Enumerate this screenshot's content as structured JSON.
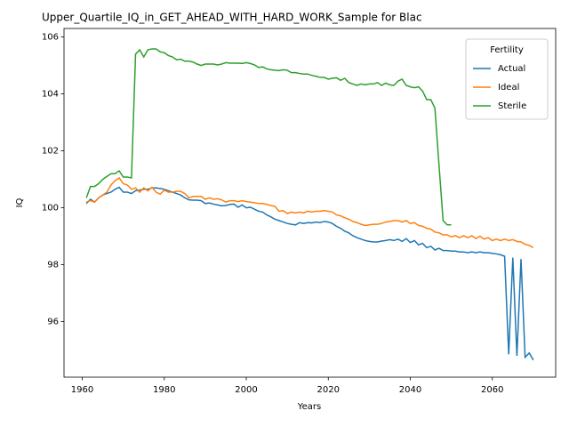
{
  "chart_data": {
    "type": "line",
    "title": "Upper_Quartile_IQ_in_GET_AHEAD_WITH_HARD_WORK_Sample for Blac",
    "xlabel": "Years",
    "ylabel": "IQ",
    "x": [
      1961,
      1962,
      1963,
      1964,
      1965,
      1966,
      1967,
      1968,
      1969,
      1970,
      1971,
      1972,
      1973,
      1974,
      1975,
      1976,
      1977,
      1978,
      1979,
      1980,
      1981,
      1982,
      1983,
      1984,
      1985,
      1986,
      1987,
      1988,
      1989,
      1990,
      1991,
      1992,
      1993,
      1994,
      1995,
      1996,
      1997,
      1998,
      1999,
      2000,
      2001,
      2002,
      2003,
      2004,
      2005,
      2006,
      2007,
      2008,
      2009,
      2010,
      2011,
      2012,
      2013,
      2014,
      2015,
      2016,
      2017,
      2018,
      2019,
      2020,
      2021,
      2022,
      2023,
      2024,
      2025,
      2026,
      2027,
      2028,
      2029,
      2030,
      2031,
      2032,
      2033,
      2034,
      2035,
      2036,
      2037,
      2038,
      2039,
      2040,
      2041,
      2042,
      2043,
      2044,
      2045,
      2046,
      2047,
      2048,
      2049,
      2050,
      2051,
      2052,
      2053,
      2054,
      2055,
      2056,
      2057,
      2058,
      2059,
      2060,
      2061,
      2062,
      2063,
      2064,
      2065,
      2066,
      2067,
      2068,
      2069,
      2070
    ],
    "series": [
      {
        "name": "Actual",
        "color": "#1f77b4",
        "values": [
          100.15,
          100.3,
          100.2,
          100.35,
          100.45,
          100.5,
          100.55,
          100.65,
          100.72,
          100.55,
          100.55,
          100.5,
          100.6,
          100.62,
          100.65,
          100.65,
          100.7,
          100.7,
          100.68,
          100.65,
          100.6,
          100.55,
          100.5,
          100.45,
          100.35,
          100.28,
          100.27,
          100.27,
          100.25,
          100.15,
          100.17,
          100.13,
          100.1,
          100.07,
          100.08,
          100.12,
          100.13,
          100.02,
          100.1,
          100.0,
          100.02,
          99.95,
          99.88,
          99.85,
          99.75,
          99.68,
          99.6,
          99.55,
          99.5,
          99.45,
          99.42,
          99.4,
          99.48,
          99.45,
          99.48,
          99.47,
          99.5,
          99.48,
          99.52,
          99.5,
          99.45,
          99.35,
          99.28,
          99.18,
          99.12,
          99.02,
          98.95,
          98.9,
          98.85,
          98.82,
          98.8,
          98.8,
          98.83,
          98.85,
          98.88,
          98.85,
          98.9,
          98.82,
          98.92,
          98.78,
          98.85,
          98.7,
          98.75,
          98.6,
          98.65,
          98.52,
          98.58,
          98.5,
          98.5,
          98.48,
          98.48,
          98.45,
          98.45,
          98.42,
          98.45,
          98.42,
          98.45,
          98.42,
          98.42,
          98.4,
          98.38,
          98.35,
          98.3,
          94.85,
          98.25,
          94.8,
          98.2,
          94.75,
          94.9,
          94.65
        ]
      },
      {
        "name": "Ideal",
        "color": "#ff7f0e",
        "values": [
          100.2,
          100.25,
          100.2,
          100.35,
          100.45,
          100.55,
          100.8,
          100.95,
          101.05,
          100.85,
          100.8,
          100.65,
          100.7,
          100.55,
          100.7,
          100.6,
          100.72,
          100.55,
          100.48,
          100.62,
          100.55,
          100.55,
          100.58,
          100.58,
          100.5,
          100.35,
          100.4,
          100.4,
          100.4,
          100.3,
          100.35,
          100.3,
          100.32,
          100.28,
          100.2,
          100.25,
          100.25,
          100.22,
          100.25,
          100.22,
          100.2,
          100.18,
          100.15,
          100.15,
          100.12,
          100.08,
          100.05,
          99.88,
          99.9,
          99.8,
          99.85,
          99.82,
          99.85,
          99.82,
          99.88,
          99.85,
          99.88,
          99.88,
          99.9,
          99.88,
          99.85,
          99.75,
          99.72,
          99.65,
          99.6,
          99.52,
          99.48,
          99.42,
          99.38,
          99.4,
          99.42,
          99.42,
          99.45,
          99.5,
          99.52,
          99.55,
          99.55,
          99.5,
          99.55,
          99.45,
          99.48,
          99.38,
          99.35,
          99.28,
          99.25,
          99.15,
          99.12,
          99.05,
          99.05,
          98.98,
          99.02,
          98.95,
          99.02,
          98.95,
          99.02,
          98.92,
          99.0,
          98.9,
          98.95,
          98.85,
          98.9,
          98.85,
          98.9,
          98.85,
          98.88,
          98.82,
          98.8,
          98.72,
          98.68,
          98.6
        ]
      },
      {
        "name": "Sterile",
        "color": "#2ca02c",
        "values": [
          100.35,
          100.75,
          100.75,
          100.85,
          101.0,
          101.1,
          101.2,
          101.2,
          101.3,
          101.08,
          101.08,
          101.05,
          105.4,
          105.55,
          105.3,
          105.55,
          105.58,
          105.58,
          105.48,
          105.45,
          105.35,
          105.3,
          105.2,
          105.22,
          105.15,
          105.15,
          105.12,
          105.05,
          105.0,
          105.05,
          105.05,
          105.05,
          105.02,
          105.05,
          105.1,
          105.08,
          105.08,
          105.08,
          105.07,
          105.1,
          105.07,
          105.02,
          104.93,
          104.95,
          104.88,
          104.85,
          104.83,
          104.82,
          104.85,
          104.83,
          104.75,
          104.75,
          104.72,
          104.7,
          104.7,
          104.65,
          104.62,
          104.58,
          104.58,
          104.52,
          104.55,
          104.57,
          104.48,
          104.55,
          104.4,
          104.35,
          104.3,
          104.35,
          104.32,
          104.35,
          104.35,
          104.4,
          104.3,
          104.38,
          104.32,
          104.3,
          104.45,
          104.52,
          104.3,
          104.25,
          104.22,
          104.25,
          104.1,
          103.8,
          103.8,
          103.5,
          101.5,
          99.55,
          99.4,
          99.4,
          null,
          null,
          null,
          null,
          null,
          null,
          null,
          null,
          null,
          null,
          null,
          null,
          null,
          null,
          null,
          null,
          null,
          null,
          null,
          null
        ]
      }
    ],
    "xlim": [
      1955.55,
      2075.45
    ],
    "xticks": [
      1960,
      1980,
      2000,
      2020,
      2040,
      2060
    ],
    "ylim": [
      94.05,
      106.3
    ],
    "yticks": [
      96,
      98,
      100,
      102,
      104,
      106
    ],
    "legend_title": "Fertility",
    "legend": "upper right",
    "grid": false
  }
}
